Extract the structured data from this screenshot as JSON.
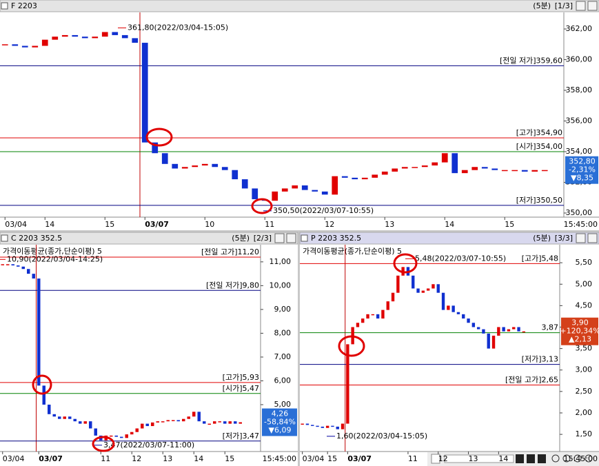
{
  "panels": [
    {
      "type": "candlestick",
      "title": "F 2203",
      "period": "(5분)",
      "page": "[1/3]",
      "indicator": null,
      "categories": [
        "03/04",
        null,
        null,
        null,
        "14",
        null,
        null,
        null,
        null,
        null,
        "15",
        null,
        null,
        null,
        "03/07",
        null,
        null,
        null,
        null,
        null,
        "10",
        null,
        null,
        null,
        null,
        null,
        "11",
        null,
        null,
        null,
        null,
        null,
        "12",
        null,
        null,
        null,
        null,
        null,
        "13",
        null,
        null,
        null,
        null,
        null,
        "14",
        null,
        null,
        null,
        null,
        null,
        "15",
        null,
        null,
        null,
        null
      ],
      "time_end": "15:45:00",
      "values": [
        361.0,
        360.9,
        360.8,
        360.9,
        361.3,
        361.5,
        361.6,
        361.5,
        361.4,
        361.5,
        361.8,
        361.6,
        361.4,
        361.1,
        354.6,
        353.9,
        353.2,
        352.9,
        353.0,
        353.1,
        353.2,
        353.0,
        352.8,
        352.2,
        351.6,
        350.9,
        350.8,
        351.4,
        351.6,
        351.8,
        351.5,
        351.4,
        351.2,
        352.4,
        352.3,
        352.2,
        352.3,
        352.5,
        352.7,
        352.9,
        353.0,
        353.0,
        353.1,
        353.3,
        353.9,
        352.6,
        352.8,
        353.0,
        352.9,
        352.8,
        352.8,
        352.8,
        352.7,
        352.8,
        352.8
      ],
      "ylim": [
        349.73,
        363.08
      ],
      "yticks": [
        {
          "value": 350,
          "label": "350,00"
        },
        {
          "value": 352,
          "label": "352,00"
        },
        {
          "value": 354,
          "label": "354,00"
        },
        {
          "value": 356,
          "label": "356,00"
        },
        {
          "value": 358,
          "label": "358,00"
        },
        {
          "value": 360,
          "label": "360,00"
        },
        {
          "value": 362,
          "label": "362,00"
        }
      ],
      "levels": [
        {
          "value": 359.6,
          "label": "[전일 저가]359,60",
          "color": "#000080"
        },
        {
          "value": 354.9,
          "label": "[고가]354,90",
          "color": "#e00000"
        },
        {
          "value": 354.0,
          "label": "[시가]354,00",
          "color": "#008000"
        },
        {
          "value": 350.5,
          "label": "[저가]350,50",
          "color": "#000080"
        }
      ],
      "annotations": [
        {
          "value": 361.8,
          "label": "361,80(2022/03/04-15:05)",
          "color": "#e00000"
        },
        {
          "value": 350.5,
          "label": "350,50(2022/03/07-10:55)",
          "color": "#0000a0"
        }
      ],
      "price_box": {
        "value": 352.8,
        "label": "352,80",
        "pct": "-2,31%",
        "change": "▼8,35",
        "color": "#2a6fd6"
      }
    },
    {
      "type": "candlestick",
      "title": "C 2203 352.5",
      "period": "(5분)",
      "page": "[2/3]",
      "indicator": "가격이동평균(종가,단순이평) 5",
      "categories": [
        "03/04",
        null,
        null,
        null,
        null,
        null,
        null,
        "03/07",
        null,
        null,
        null,
        null,
        null,
        null,
        null,
        null,
        null,
        null,
        null,
        "11",
        null,
        null,
        null,
        null,
        null,
        "12",
        null,
        null,
        null,
        null,
        null,
        "13",
        null,
        null,
        null,
        null,
        null,
        "14",
        null,
        null,
        null,
        null,
        null,
        "15",
        null,
        null,
        null
      ],
      "time_end": "15:45:00",
      "values": [
        10.9,
        10.9,
        10.85,
        10.8,
        10.7,
        10.5,
        10.3,
        5.8,
        5.0,
        4.6,
        4.5,
        4.4,
        4.5,
        4.4,
        4.3,
        4.2,
        4.3,
        4.0,
        3.7,
        3.5,
        3.7,
        3.7,
        3.65,
        3.6,
        3.75,
        3.85,
        4.0,
        4.2,
        4.1,
        4.25,
        4.3,
        4.3,
        4.35,
        4.35,
        4.3,
        4.4,
        4.5,
        4.7,
        4.3,
        4.2,
        4.2,
        4.3,
        4.3,
        4.2,
        4.3,
        4.2,
        4.26
      ],
      "ylim": [
        3.03,
        11.72
      ],
      "yticks": [
        {
          "value": 5,
          "label": "5,00"
        },
        {
          "value": 6,
          "label": "6,00"
        },
        {
          "value": 7,
          "label": "7,00"
        },
        {
          "value": 8,
          "label": "8,00"
        },
        {
          "value": 9,
          "label": "9,00"
        },
        {
          "value": 10,
          "label": "10,00"
        },
        {
          "value": 11,
          "label": "11,00"
        }
      ],
      "levels": [
        {
          "value": 11.2,
          "label": "[전일 고가]11,20",
          "color": "#e00000"
        },
        {
          "value": 9.8,
          "label": "[전일 저가]9,80",
          "color": "#000080"
        },
        {
          "value": 5.93,
          "label": "[고가]5,93",
          "color": "#e00000"
        },
        {
          "value": 5.47,
          "label": "[시가]5,47",
          "color": "#008000"
        },
        {
          "value": 3.47,
          "label": "[저가]3,47",
          "color": "#000080"
        }
      ],
      "annotations": [
        {
          "value": 10.9,
          "label": "10,90(2022/03/04-14:25)",
          "color": "#e00000"
        },
        {
          "value": 3.47,
          "label": "3,47(2022/03/07-11:00)",
          "color": "#0000a0"
        }
      ],
      "price_box": {
        "value": 4.26,
        "label": "4,26",
        "pct": "-58,84%",
        "change": "▼6,09",
        "color": "#2a6fd6"
      }
    },
    {
      "type": "candlestick",
      "title": "P 2203 352.5",
      "period": "(5분)",
      "page": "[3/3]",
      "indicator": "가격이동평균(종가,단순이평) 5",
      "categories": [
        "03/04",
        null,
        null,
        null,
        null,
        "15",
        null,
        null,
        null,
        "03/07",
        null,
        null,
        null,
        null,
        null,
        null,
        null,
        null,
        null,
        null,
        null,
        "11",
        null,
        null,
        null,
        null,
        null,
        "12",
        null,
        null,
        null,
        null,
        null,
        "13",
        null,
        null,
        null,
        null,
        null,
        "14",
        null,
        null,
        null,
        null,
        null
      ],
      "time_end": "15:45:00",
      "values": [
        1.75,
        1.72,
        1.7,
        1.68,
        1.65,
        1.7,
        1.68,
        1.62,
        1.75,
        3.6,
        4.0,
        4.1,
        4.2,
        4.3,
        4.3,
        4.2,
        4.4,
        4.6,
        4.8,
        5.2,
        5.4,
        5.2,
        4.9,
        4.8,
        4.85,
        4.9,
        5.0,
        4.8,
        4.4,
        4.5,
        4.35,
        4.3,
        4.2,
        4.1,
        4.0,
        3.95,
        3.85,
        3.5,
        3.8,
        4.0,
        3.9,
        3.95,
        4.0,
        3.9,
        3.9
      ],
      "ylim": [
        1.1,
        5.92
      ],
      "yticks": [
        {
          "value": 1.5,
          "label": "1,50"
        },
        {
          "value": 2,
          "label": "2,00"
        },
        {
          "value": 2.5,
          "label": "2,50"
        },
        {
          "value": 3,
          "label": "3,00"
        },
        {
          "value": 3.5,
          "label": "3,50"
        },
        {
          "value": 4,
          "label": "4,00"
        },
        {
          "value": 4.5,
          "label": "4,50"
        },
        {
          "value": 5,
          "label": "5,00"
        },
        {
          "value": 5.5,
          "label": "5,50"
        }
      ],
      "levels": [
        {
          "value": 5.48,
          "label": "[고가]5,48",
          "color": "#e00000"
        },
        {
          "value": 3.87,
          "label": "3,87",
          "color": "#008000"
        },
        {
          "value": 3.13,
          "label": "[저가]3,13",
          "color": "#000080"
        },
        {
          "value": 2.65,
          "label": "[전일 고가]2,65",
          "color": "#e00000"
        }
      ],
      "annotations": [
        {
          "value": 5.48,
          "label": "5,48(2022/03/07-10:55)",
          "color": "#e00000"
        },
        {
          "value": 1.6,
          "label": "1,60(2022/03/04-15:05)",
          "color": "#0000a0"
        }
      ],
      "price_box": {
        "value": 3.9,
        "label": "3,90",
        "pct": "+120,34%",
        "change": "▲2,13",
        "color": "#d4401a"
      }
    }
  ]
}
